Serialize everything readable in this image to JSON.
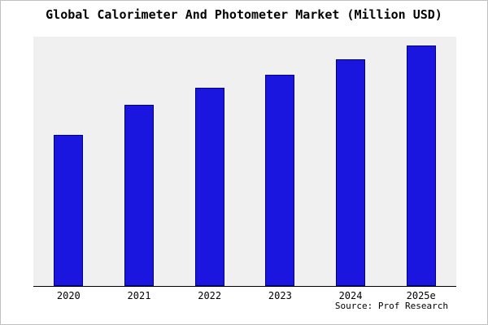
{
  "title": "Global Calorimeter And Photometer Market (Million USD)",
  "source": "Source: Prof Research",
  "colors": {
    "bar": "#1a16e0",
    "bar_edge": "#000080",
    "plot_bg": "#f0f0f0",
    "axis": "#000000"
  },
  "chart_data": {
    "type": "bar",
    "title": "Global Calorimeter And Photometer Market (Million USD)",
    "categories": [
      "2020",
      "2021",
      "2022",
      "2023",
      "2024",
      "2025e"
    ],
    "values": [
      188,
      225,
      246,
      263,
      282,
      299
    ],
    "xlabel": "",
    "ylabel": "",
    "ylim": [
      0,
      310
    ],
    "grid": false,
    "legend": false,
    "annotations": [
      "Source: Prof Research"
    ]
  }
}
